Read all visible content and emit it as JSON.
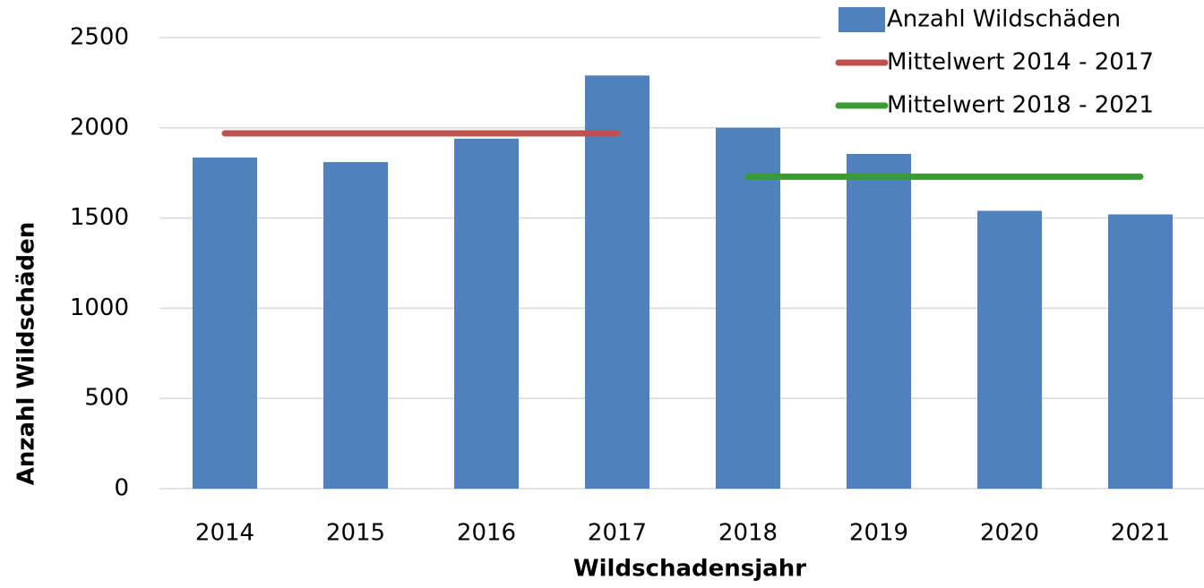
{
  "chart_data": {
    "type": "bar",
    "x_label": "Wildschadensjahr",
    "y_label": "Anzahl Wildschäden",
    "categories": [
      "2014",
      "2015",
      "2016",
      "2017",
      "2018",
      "2019",
      "2020",
      "2021"
    ],
    "series": [
      {
        "name": "Anzahl Wildschäden",
        "type": "bar",
        "color": "#4f81bd",
        "values": [
          1835,
          1810,
          1940,
          2290,
          2000,
          1855,
          1540,
          1520
        ]
      },
      {
        "name": "Mittelwert 2014 - 2017",
        "type": "line",
        "color": "#c0504d",
        "values": [
          1969,
          1969,
          1969,
          1969,
          null,
          null,
          null,
          null
        ]
      },
      {
        "name": "Mittelwert 2018 - 2021",
        "type": "line",
        "color": "#3a9a33",
        "values": [
          null,
          null,
          null,
          null,
          1729,
          1729,
          1729,
          1729
        ]
      }
    ],
    "ylim": [
      0,
      2500
    ],
    "yticks": [
      0,
      500,
      1000,
      1500,
      2000,
      2500
    ],
    "grid": true,
    "legend": "top-right"
  }
}
